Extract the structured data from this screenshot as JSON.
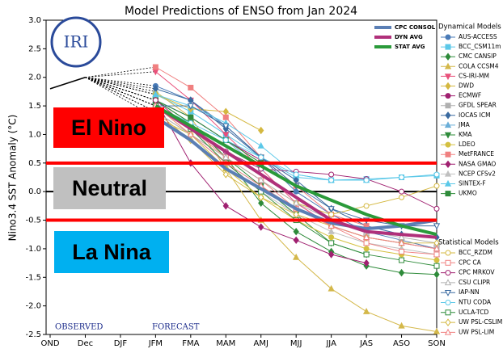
{
  "chart_data": {
    "type": "line",
    "title": "Model Predictions of ENSO from Jan 2024",
    "y_label": "Nino3.4 SST Anomaly (°C)",
    "logo_text": "IRI",
    "observed_label": "OBSERVED",
    "forecast_label": "FORECAST",
    "categories": [
      "OND",
      "Dec",
      "DJF",
      "JFM",
      "FMA",
      "MAM",
      "AMJ",
      "MJJ",
      "JJA",
      "JAS",
      "ASO",
      "SON"
    ],
    "ylim": [
      -2.5,
      3.0
    ],
    "yticks": [
      {
        "value": -2.5,
        "label": "-2.5"
      },
      {
        "value": -2.0,
        "label": "-2.0"
      },
      {
        "value": -1.5,
        "label": "-1.5"
      },
      {
        "value": -1.0,
        "label": "-1.0"
      },
      {
        "value": -0.5,
        "label": "-0.5"
      },
      {
        "value": 0.0,
        "label": "0.0"
      },
      {
        "value": 0.5,
        "label": "0.5"
      },
      {
        "value": 1.0,
        "label": "1.0"
      },
      {
        "value": 1.5,
        "label": "1.5"
      },
      {
        "value": 2.0,
        "label": "2.0"
      },
      {
        "value": 2.5,
        "label": "2.5"
      },
      {
        "value": 3.0,
        "label": "3.0"
      }
    ],
    "thresholds": [
      0.5,
      -0.5
    ],
    "threshold_color": "#ff0000",
    "zones": [
      {
        "label": "El Nino",
        "color": "#ff0000"
      },
      {
        "label": "Neutral",
        "color": "#c0c0c0"
      },
      {
        "label": "La Nina",
        "color": "#00b0f0"
      }
    ],
    "observed": {
      "color": "#000000",
      "values": [
        1.8,
        2.0,
        null,
        null,
        null,
        null,
        null,
        null,
        null,
        null,
        null,
        null
      ]
    },
    "groups": [
      {
        "title": "Dynamical Models",
        "series": [
          {
            "name": "AUS-ACCESS",
            "color": "#4a7bb7",
            "marker": "circle",
            "filled": true,
            "values": [
              null,
              null,
              null,
              1.85,
              1.6,
              1.15,
              0.6,
              0.0,
              -0.4,
              -0.7,
              -0.85,
              -1.0
            ]
          },
          {
            "name": "BCC_CSM11m",
            "color": "#5bc8e8",
            "marker": "square",
            "filled": true,
            "values": [
              null,
              null,
              null,
              1.7,
              1.4,
              1.0,
              0.6,
              0.25,
              0.2,
              0.22,
              0.25,
              0.28
            ]
          },
          {
            "name": "CMC CANSIP",
            "color": "#2e8b3a",
            "marker": "diamond",
            "filled": true,
            "values": [
              null,
              null,
              null,
              1.6,
              1.2,
              0.6,
              -0.2,
              -0.7,
              -1.05,
              -1.3,
              -1.42,
              -1.45
            ]
          },
          {
            "name": "COLA CCSM4",
            "color": "#d4b84a",
            "marker": "triangle",
            "filled": true,
            "values": [
              null,
              null,
              null,
              1.75,
              1.3,
              0.4,
              -0.5,
              -1.15,
              -1.7,
              -2.1,
              -2.35,
              -2.45
            ]
          },
          {
            "name": "CS-IRI-MM",
            "color": "#e8507a",
            "marker": "triangle-down",
            "filled": true,
            "values": [
              null,
              null,
              null,
              2.1,
              1.6,
              1.0,
              0.4,
              -0.2,
              -0.6,
              -0.8,
              -0.9,
              -1.0
            ]
          },
          {
            "name": "DWD",
            "color": "#d4b840",
            "marker": "diamond",
            "filled": true,
            "values": [
              null,
              null,
              null,
              1.7,
              1.45,
              1.4,
              1.07,
              null,
              null,
              null,
              null,
              null
            ]
          },
          {
            "name": "ECMWF",
            "color": "#a02070",
            "marker": "circle",
            "filled": true,
            "values": [
              null,
              null,
              null,
              1.6,
              1.3,
              0.9,
              0.55,
              null,
              null,
              null,
              null,
              null
            ]
          },
          {
            "name": "GFDL SPEAR",
            "color": "#b0b0b0",
            "marker": "square",
            "filled": true,
            "values": [
              null,
              null,
              null,
              1.5,
              1.1,
              0.5,
              0.1,
              -0.3,
              -0.6,
              -0.8,
              -0.9,
              -1.0
            ]
          },
          {
            "name": "IOCAS ICM",
            "color": "#3a6aa0",
            "marker": "diamond",
            "filled": true,
            "values": [
              null,
              null,
              null,
              1.8,
              1.6,
              1.1,
              0.6,
              0.2,
              -0.3,
              -0.6,
              -0.75,
              -0.8
            ]
          },
          {
            "name": "JMA",
            "color": "#6aaed8",
            "marker": "triangle",
            "filled": true,
            "values": [
              null,
              null,
              null,
              1.6,
              1.3,
              0.9,
              0.4,
              null,
              null,
              null,
              null,
              null
            ]
          },
          {
            "name": "KMA",
            "color": "#2e8b3a",
            "marker": "triangle-down",
            "filled": true,
            "values": [
              null,
              null,
              null,
              1.6,
              1.2,
              0.6,
              0.1,
              -0.4,
              -0.9,
              -1.1,
              null,
              null
            ]
          },
          {
            "name": "LDEO",
            "color": "#d4c040",
            "marker": "circle",
            "filled": true,
            "values": [
              null,
              null,
              null,
              1.5,
              1.0,
              0.4,
              -0.1,
              -0.5,
              -0.8,
              -1.0,
              -1.1,
              -1.2
            ]
          },
          {
            "name": "MetFRANCE",
            "color": "#f08080",
            "marker": "square",
            "filled": true,
            "values": [
              null,
              null,
              null,
              2.18,
              1.82,
              1.3,
              0.6,
              0.1,
              -0.4,
              -0.6,
              null,
              null
            ]
          },
          {
            "name": "NASA GMAO",
            "color": "#a02070",
            "marker": "diamond",
            "filled": true,
            "values": [
              null,
              null,
              null,
              1.6,
              0.5,
              -0.25,
              -0.62,
              -0.85,
              -1.1,
              -1.25,
              null,
              null
            ]
          },
          {
            "name": "NCEP CFSv2",
            "color": "#c0c0c0",
            "marker": "triangle",
            "filled": true,
            "values": [
              null,
              null,
              null,
              1.4,
              1.0,
              0.5,
              0.0,
              -0.4,
              -0.7,
              -0.9,
              -1.0,
              -1.1
            ]
          },
          {
            "name": "SINTEX-F",
            "color": "#5bc8e8",
            "marker": "triangle",
            "filled": true,
            "values": [
              null,
              null,
              null,
              1.7,
              1.5,
              1.2,
              0.8,
              0.3,
              0.2,
              0.2,
              null,
              null
            ]
          },
          {
            "name": "UKMO",
            "color": "#2e8b3a",
            "marker": "square",
            "filled": true,
            "values": [
              null,
              null,
              null,
              1.6,
              1.3,
              0.9,
              0.5,
              null,
              null,
              null,
              null,
              null
            ]
          }
        ]
      },
      {
        "title": "Statistical Models",
        "series": [
          {
            "name": "BCC_RZDM",
            "color": "#d4b840",
            "marker": "circle",
            "filled": false,
            "values": [
              null,
              null,
              null,
              1.3,
              1.0,
              0.6,
              0.2,
              -0.2,
              -0.4,
              -0.25,
              -0.1,
              0.1
            ]
          },
          {
            "name": "CPC CA",
            "color": "#f08080",
            "marker": "square",
            "filled": false,
            "values": [
              null,
              null,
              null,
              1.5,
              1.1,
              0.6,
              0.2,
              -0.3,
              -0.6,
              -0.9,
              -1.05,
              -1.1
            ]
          },
          {
            "name": "CPC MRKOV",
            "color": "#a02070",
            "marker": "circle",
            "filled": false,
            "values": [
              null,
              null,
              null,
              1.6,
              1.1,
              0.7,
              0.4,
              0.35,
              0.3,
              0.22,
              0.0,
              -0.3
            ]
          },
          {
            "name": "CSU CLIPR",
            "color": "#b0b0b0",
            "marker": "triangle",
            "filled": false,
            "values": [
              null,
              null,
              null,
              1.4,
              1.0,
              0.6,
              0.2,
              -0.2,
              -0.5,
              -0.7,
              -0.8,
              -0.9
            ]
          },
          {
            "name": "IAP-NN",
            "color": "#3a6aa0",
            "marker": "triangle-down",
            "filled": false,
            "values": [
              null,
              null,
              null,
              1.5,
              1.5,
              1.15,
              0.6,
              0.1,
              -0.3,
              -0.5,
              -0.6,
              -0.6
            ]
          },
          {
            "name": "NTU CODA",
            "color": "#5bc8e8",
            "marker": "circle",
            "filled": false,
            "values": [
              null,
              null,
              null,
              1.5,
              1.2,
              0.9,
              0.6,
              0.3,
              0.2,
              0.2,
              0.25,
              0.3
            ]
          },
          {
            "name": "UCLA-TCD",
            "color": "#2e8b3a",
            "marker": "square",
            "filled": false,
            "values": [
              null,
              null,
              null,
              1.5,
              1.1,
              0.5,
              0.0,
              -0.5,
              -0.9,
              -1.1,
              -1.2,
              -1.3
            ]
          },
          {
            "name": "UW PSL-CSLIM",
            "color": "#d4b840",
            "marker": "diamond",
            "filled": false,
            "values": [
              null,
              null,
              null,
              1.4,
              0.9,
              0.3,
              -0.1,
              -0.4,
              -0.6,
              -0.8,
              -0.9,
              -0.9
            ]
          },
          {
            "name": "UW PSL-LIM",
            "color": "#f08080",
            "marker": "triangle",
            "filled": false,
            "values": [
              null,
              null,
              null,
              1.5,
              1.0,
              0.5,
              0.1,
              -0.3,
              -0.6,
              -0.8,
              -0.9,
              -1.0
            ]
          }
        ]
      },
      {
        "series": [
          {
            "name": "CPC CONSOL",
            "color": "#5b7fb5",
            "values": [
              null,
              null,
              null,
              1.3,
              0.9,
              0.4,
              0.05,
              -0.3,
              -0.55,
              -0.65,
              -0.6,
              -0.5
            ]
          },
          {
            "name": "DYN AVG",
            "color": "#b0307a",
            "values": [
              null,
              null,
              null,
              1.5,
              1.1,
              0.7,
              0.3,
              -0.1,
              -0.5,
              -0.7,
              -0.75,
              -0.8
            ]
          },
          {
            "name": "STAT AVG",
            "color": "#2a9a3a",
            "values": [
              null,
              null,
              null,
              1.5,
              1.15,
              0.8,
              0.45,
              0.1,
              -0.15,
              -0.4,
              -0.6,
              -0.75
            ]
          }
        ]
      }
    ]
  }
}
